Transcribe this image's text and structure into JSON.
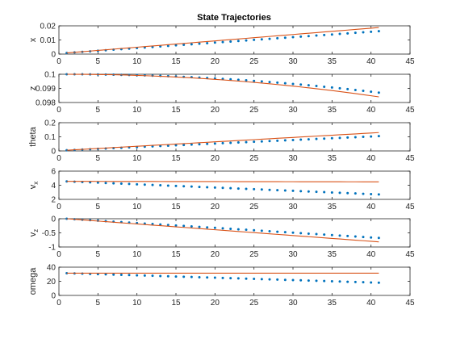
{
  "title": "State Trajectories",
  "colors": {
    "dots": "#0072BD",
    "line": "#D95319",
    "axis": "#262626"
  },
  "chart_data": [
    {
      "type": "line",
      "ylabel": "x",
      "xlim": [
        0,
        45
      ],
      "ylim": [
        0,
        0.02
      ],
      "xticks": [
        "0",
        "5",
        "10",
        "15",
        "20",
        "25",
        "30",
        "35",
        "40",
        "45"
      ],
      "yticks": [
        "0",
        "0.01",
        "0.02"
      ],
      "legend": "none",
      "grid": false,
      "series": [
        {
          "kind": "dots",
          "x_range": [
            1,
            41
          ],
          "values_start": 0.0008,
          "values_end": 0.0162,
          "curve": "linear"
        },
        {
          "kind": "line",
          "x_range": [
            1,
            41
          ],
          "values_start": 0.0008,
          "values_end": 0.0188,
          "curve": "linear"
        }
      ]
    },
    {
      "type": "line",
      "ylabel": "z",
      "xlim": [
        0,
        45
      ],
      "ylim": [
        0.098,
        0.1
      ],
      "xticks": [
        "0",
        "5",
        "10",
        "15",
        "20",
        "25",
        "30",
        "35",
        "40",
        "45"
      ],
      "yticks": [
        "0.098",
        "0.099",
        "0.1"
      ],
      "legend": "none",
      "grid": false,
      "series": [
        {
          "kind": "dots",
          "x_range": [
            1,
            41
          ],
          "values_start": 0.1,
          "values_end": 0.0987,
          "curve": "quadratic"
        },
        {
          "kind": "line",
          "x_range": [
            1,
            41
          ],
          "values_start": 0.1,
          "values_end": 0.0984,
          "curve": "quadratic"
        }
      ]
    },
    {
      "type": "line",
      "ylabel": "theta",
      "xlim": [
        0,
        45
      ],
      "ylim": [
        0,
        0.2
      ],
      "xticks": [
        "0",
        "5",
        "10",
        "15",
        "20",
        "25",
        "30",
        "35",
        "40",
        "45"
      ],
      "yticks": [
        "0",
        "0.1",
        "0.2"
      ],
      "legend": "none",
      "grid": false,
      "series": [
        {
          "kind": "dots",
          "x_range": [
            1,
            41
          ],
          "values_start": 0.005,
          "values_end": 0.105,
          "curve": "linear"
        },
        {
          "kind": "line",
          "x_range": [
            1,
            41
          ],
          "values_start": 0.005,
          "values_end": 0.13,
          "curve": "linear"
        }
      ]
    },
    {
      "type": "line",
      "ylabel": "v_x",
      "xlim": [
        0,
        45
      ],
      "ylim": [
        2,
        6
      ],
      "xticks": [
        "0",
        "5",
        "10",
        "15",
        "20",
        "25",
        "30",
        "35",
        "40",
        "45"
      ],
      "yticks": [
        "2",
        "4",
        "6"
      ],
      "legend": "none",
      "grid": false,
      "series": [
        {
          "kind": "dots",
          "x_range": [
            1,
            41
          ],
          "values_start": 4.55,
          "values_end": 2.7,
          "curve": "linear"
        },
        {
          "kind": "line",
          "x_range": [
            1,
            41
          ],
          "values_start": 4.55,
          "values_end": 4.48,
          "curve": "linear"
        }
      ]
    },
    {
      "type": "line",
      "ylabel": "v_z",
      "xlim": [
        0,
        45
      ],
      "ylim": [
        -1,
        0
      ],
      "xticks": [
        "0",
        "5",
        "10",
        "15",
        "20",
        "25",
        "30",
        "35",
        "40",
        "45"
      ],
      "yticks": [
        "-1",
        "-0.5",
        "0"
      ],
      "legend": "none",
      "grid": false,
      "series": [
        {
          "kind": "dots",
          "x_range": [
            1,
            41
          ],
          "values_start": 0.0,
          "values_end": -0.68,
          "curve": "linear"
        },
        {
          "kind": "line",
          "x_range": [
            1,
            41
          ],
          "values_start": 0.0,
          "values_end": -0.82,
          "curve": "linear"
        }
      ]
    },
    {
      "type": "line",
      "ylabel": "omega",
      "xlim": [
        0,
        45
      ],
      "ylim": [
        0,
        40
      ],
      "xticks": [
        "0",
        "5",
        "10",
        "15",
        "20",
        "25",
        "30",
        "35",
        "40",
        "45"
      ],
      "yticks": [
        "0",
        "20",
        "40"
      ],
      "legend": "none",
      "grid": false,
      "series": [
        {
          "kind": "dots",
          "x_range": [
            1,
            41
          ],
          "values_start": 31.5,
          "values_end": 18.0,
          "curve": "linear"
        },
        {
          "kind": "line",
          "x_range": [
            1,
            41
          ],
          "values_start": 31.5,
          "values_end": 31.5,
          "curve": "linear"
        }
      ]
    }
  ]
}
